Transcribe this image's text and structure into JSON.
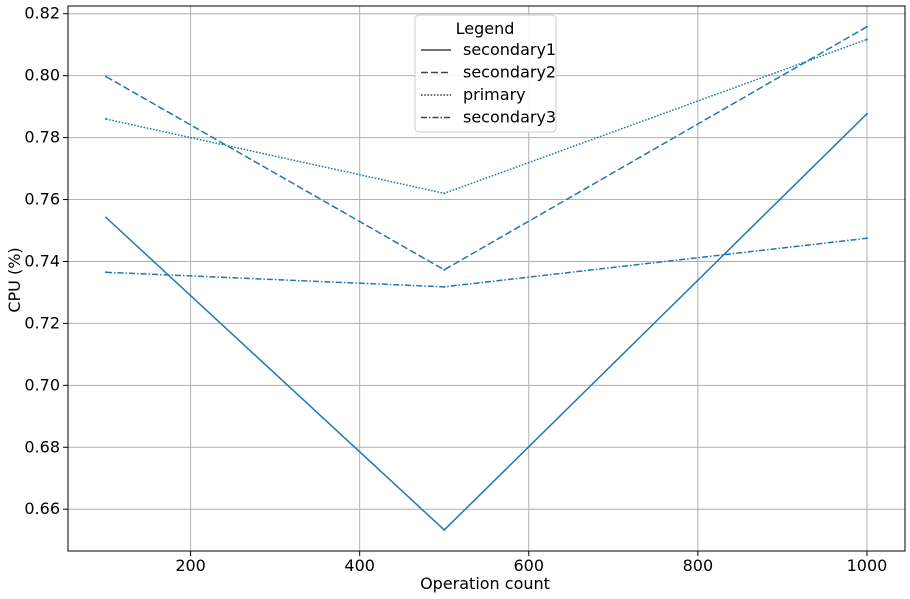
{
  "chart_data": {
    "type": "line",
    "xlabel": "Operation count",
    "ylabel": "CPU (%)",
    "x": [
      100,
      500,
      1000
    ],
    "xlim": [
      55,
      1045
    ],
    "ylim": [
      0.6465,
      0.8225
    ],
    "xticks": [
      200,
      400,
      600,
      800,
      1000
    ],
    "xtick_labels": [
      "200",
      "400",
      "600",
      "800",
      "1000"
    ],
    "yticks": [
      0.66,
      0.68,
      0.7,
      0.72,
      0.74,
      0.76,
      0.78,
      0.8,
      0.82
    ],
    "ytick_labels": [
      "0.66",
      "0.68",
      "0.70",
      "0.72",
      "0.74",
      "0.76",
      "0.78",
      "0.80",
      "0.82"
    ],
    "grid": true,
    "legend": {
      "title": "Legend",
      "placement": "top-center"
    },
    "series": [
      {
        "name": "secondary1",
        "style": "solid",
        "values": [
          0.7542,
          0.6533,
          0.7877
        ]
      },
      {
        "name": "secondary2",
        "style": "dashed",
        "values": [
          0.7997,
          0.7373,
          0.8158
        ]
      },
      {
        "name": "primary",
        "style": "dotted",
        "values": [
          0.786,
          0.762,
          0.8117
        ]
      },
      {
        "name": "secondary3",
        "style": "dashdot",
        "values": [
          0.7365,
          0.7318,
          0.7475
        ]
      }
    ],
    "colors": {
      "line": "#1f77b4",
      "legend_line": "#444444",
      "grid": "#b0b0b0",
      "axis": "#000000"
    }
  }
}
